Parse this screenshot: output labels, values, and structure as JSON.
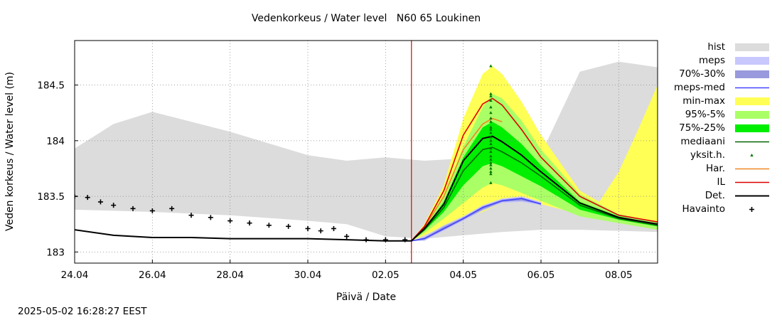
{
  "chart_data": {
    "type": "area",
    "title": "Vedenkorkeus / Water level   N60 65 Loukinen",
    "xlabel": "Päivä / Date",
    "ylabel": "Veden korkeus / Water level (m)",
    "xlim": [
      "2025-04-24",
      "2025-05-09"
    ],
    "ylim": [
      182.9,
      184.9
    ],
    "x_ticks": [
      "24.04",
      "26.04",
      "28.04",
      "30.04",
      "02.05",
      "04.05",
      "06.05",
      "08.05"
    ],
    "y_ticks": [
      "183",
      "183.5",
      "184",
      "184.5"
    ],
    "grid": true,
    "forecast_start": "2025-05-02 16:00",
    "legend_position": "right",
    "series": [
      {
        "name": "hist",
        "color": "#dcdcdc",
        "x": [
          "2025-04-24",
          "2025-04-25",
          "2025-04-26",
          "2025-04-28",
          "2025-04-30",
          "2025-05-01",
          "2025-05-02",
          "2025-05-03",
          "2025-05-04",
          "2025-05-05",
          "2025-05-06",
          "2025-05-07",
          "2025-05-08",
          "2025-05-09"
        ],
        "upper": [
          183.93,
          184.15,
          184.26,
          184.08,
          183.87,
          183.82,
          183.85,
          183.82,
          183.84,
          183.9,
          183.88,
          184.62,
          184.71,
          184.66
        ],
        "lower": [
          183.38,
          183.37,
          183.36,
          183.33,
          183.28,
          183.25,
          183.14,
          183.12,
          183.15,
          183.18,
          183.2,
          183.2,
          183.19,
          183.18
        ]
      },
      {
        "name": "min-max",
        "color": "#ffff55",
        "x": [
          "2025-05-02 16:00",
          "2025-05-03",
          "2025-05-03 12:00",
          "2025-05-04",
          "2025-05-04 12:00",
          "2025-05-04 18:00",
          "2025-05-05",
          "2025-05-05 12:00",
          "2025-05-06",
          "2025-05-07",
          "2025-05-07 12:00",
          "2025-05-08",
          "2025-05-08 12:00",
          "2025-05-09"
        ],
        "upper": [
          183.1,
          183.25,
          183.6,
          184.2,
          184.6,
          184.67,
          184.6,
          184.35,
          184.05,
          183.55,
          183.45,
          183.72,
          184.1,
          184.5
        ],
        "lower": [
          183.1,
          183.15,
          183.23,
          183.3,
          183.36,
          183.4,
          183.44,
          183.46,
          183.43,
          183.34,
          183.3,
          183.27,
          183.24,
          183.21
        ]
      },
      {
        "name": "95%-5%",
        "color": "#aaff66",
        "x": [
          "2025-05-02 16:00",
          "2025-05-03",
          "2025-05-03 12:00",
          "2025-05-04",
          "2025-05-04 12:00",
          "2025-05-04 18:00",
          "2025-05-05",
          "2025-05-05 12:00",
          "2025-05-06",
          "2025-05-07",
          "2025-05-08",
          "2025-05-09"
        ],
        "upper": [
          183.1,
          183.22,
          183.5,
          183.95,
          184.3,
          184.42,
          184.38,
          184.18,
          183.92,
          183.52,
          183.34,
          183.27
        ],
        "lower": [
          183.1,
          183.17,
          183.3,
          183.44,
          183.58,
          183.62,
          183.6,
          183.53,
          183.46,
          183.32,
          183.26,
          183.2
        ]
      },
      {
        "name": "75%-25%",
        "color": "#00ee00",
        "x": [
          "2025-05-02 16:00",
          "2025-05-03",
          "2025-05-03 12:00",
          "2025-05-04",
          "2025-05-04 12:00",
          "2025-05-04 18:00",
          "2025-05-05",
          "2025-05-05 12:00",
          "2025-05-06",
          "2025-05-07",
          "2025-05-08",
          "2025-05-09"
        ],
        "upper": [
          183.1,
          183.21,
          183.45,
          183.85,
          184.12,
          184.17,
          184.12,
          183.97,
          183.78,
          183.45,
          183.32,
          183.25
        ],
        "lower": [
          183.1,
          183.19,
          183.36,
          183.6,
          183.77,
          183.8,
          183.77,
          183.68,
          183.59,
          183.38,
          183.29,
          183.23
        ]
      },
      {
        "name": "mediaani",
        "color": "#006600",
        "x": [
          "2025-05-02 16:00",
          "2025-05-03",
          "2025-05-03 12:00",
          "2025-05-04",
          "2025-05-04 12:00",
          "2025-05-04 18:00",
          "2025-05-05",
          "2025-05-05 12:00",
          "2025-05-06",
          "2025-05-07",
          "2025-05-08",
          "2025-05-09"
        ],
        "values": [
          183.1,
          183.2,
          183.4,
          183.73,
          183.92,
          183.94,
          183.9,
          183.8,
          183.68,
          183.42,
          183.3,
          183.24
        ]
      },
      {
        "name": "meps",
        "color": "#c8c8ff",
        "x": [
          "2025-05-02 16:00",
          "2025-05-03",
          "2025-05-03 12:00",
          "2025-05-04",
          "2025-05-04 12:00",
          "2025-05-05",
          "2025-05-05 12:00",
          "2025-05-06"
        ],
        "upper": [
          183.1,
          183.14,
          183.24,
          183.32,
          183.42,
          183.48,
          183.5,
          183.45
        ],
        "lower": [
          183.1,
          183.1,
          183.19,
          183.28,
          183.37,
          183.44,
          183.45,
          183.42
        ]
      },
      {
        "name": "70%-30%",
        "color": "#9999dd",
        "x": [
          "2025-05-02 16:00",
          "2025-05-03",
          "2025-05-03 12:00",
          "2025-05-04",
          "2025-05-04 12:00",
          "2025-05-05",
          "2025-05-05 12:00",
          "2025-05-06"
        ],
        "upper": [
          183.1,
          183.13,
          183.23,
          183.31,
          183.41,
          183.47,
          183.49,
          183.44
        ],
        "lower": [
          183.1,
          183.11,
          183.2,
          183.29,
          183.38,
          183.45,
          183.46,
          183.43
        ]
      },
      {
        "name": "meps-med",
        "color": "#4444ff",
        "x": [
          "2025-05-02 16:00",
          "2025-05-03",
          "2025-05-03 12:00",
          "2025-05-04",
          "2025-05-04 12:00",
          "2025-05-05",
          "2025-05-05 12:00",
          "2025-05-06"
        ],
        "values": [
          183.1,
          183.12,
          183.21,
          183.3,
          183.4,
          183.46,
          183.48,
          183.43
        ]
      },
      {
        "name": "Har.",
        "color": "#ee8822",
        "x": [
          "2025-05-02 16:00",
          "2025-05-03",
          "2025-05-03 12:00",
          "2025-05-04",
          "2025-05-04 12:00",
          "2025-05-04 18:00",
          "2025-05-05"
        ],
        "values": [
          183.1,
          183.22,
          183.5,
          183.92,
          184.15,
          184.2,
          184.17
        ]
      },
      {
        "name": "IL",
        "color": "#dd0000",
        "x": [
          "2025-05-02 16:00",
          "2025-05-03",
          "2025-05-03 12:00",
          "2025-05-04",
          "2025-05-04 12:00",
          "2025-05-04 18:00",
          "2025-05-05",
          "2025-05-05 12:00",
          "2025-05-06",
          "2025-05-07",
          "2025-05-08",
          "2025-05-09"
        ],
        "values": [
          183.1,
          183.23,
          183.55,
          184.05,
          184.33,
          184.38,
          184.32,
          184.1,
          183.85,
          183.5,
          183.33,
          183.27
        ]
      },
      {
        "name": "Det.",
        "color": "#000000",
        "x": [
          "2025-04-24",
          "2025-04-25",
          "2025-04-26",
          "2025-04-27",
          "2025-04-28",
          "2025-04-29",
          "2025-04-30",
          "2025-05-01",
          "2025-05-02",
          "2025-05-02 16:00",
          "2025-05-03",
          "2025-05-03 12:00",
          "2025-05-04",
          "2025-05-04 12:00",
          "2025-05-04 18:00",
          "2025-05-05",
          "2025-05-05 12:00",
          "2025-05-06",
          "2025-05-07",
          "2025-05-08",
          "2025-05-09"
        ],
        "values": [
          183.2,
          183.15,
          183.13,
          183.13,
          183.12,
          183.12,
          183.12,
          183.11,
          183.1,
          183.1,
          183.21,
          183.43,
          183.82,
          184.02,
          184.04,
          183.99,
          183.87,
          183.72,
          183.44,
          183.31,
          183.25
        ]
      },
      {
        "name": "Havainto",
        "color": "#000000",
        "marker": "plus",
        "x": [
          "2025-04-24",
          "2025-04-24 08:00",
          "2025-04-24 16:00",
          "2025-04-25",
          "2025-04-25 12:00",
          "2025-04-26",
          "2025-04-26 12:00",
          "2025-04-27",
          "2025-04-27 12:00",
          "2025-04-28",
          "2025-04-28 12:00",
          "2025-04-29",
          "2025-04-29 12:00",
          "2025-04-30",
          "2025-04-30 08:00",
          "2025-04-30 16:00",
          "2025-05-01",
          "2025-05-01 12:00",
          "2025-05-02",
          "2025-05-02 12:00"
        ],
        "values": [
          183.5,
          183.49,
          183.45,
          183.42,
          183.39,
          183.37,
          183.39,
          183.33,
          183.31,
          183.28,
          183.26,
          183.24,
          183.23,
          183.21,
          183.19,
          183.21,
          183.14,
          183.11,
          183.11,
          183.11
        ]
      },
      {
        "name": "yksit.h.",
        "color": "#007700",
        "marker": "triangle",
        "x": [
          "2025-05-04 17:00",
          "2025-05-04 17:00",
          "2025-05-04 17:00",
          "2025-05-04 17:00",
          "2025-05-04 17:00",
          "2025-05-04 17:00",
          "2025-05-04 17:00",
          "2025-05-04 17:00",
          "2025-05-04 17:00",
          "2025-05-04 17:00",
          "2025-05-04 17:00",
          "2025-05-04 17:00",
          "2025-05-04 17:00",
          "2025-05-04 17:00",
          "2025-05-04 17:00",
          "2025-05-04 17:00",
          "2025-05-04 17:00",
          "2025-05-04 17:00",
          "2025-05-04 17:00",
          "2025-05-04 17:00",
          "2025-05-04 17:00",
          "2025-05-04 17:00",
          "2025-05-04 17:00",
          "2025-05-04 17:00"
        ],
        "values": [
          184.67,
          184.42,
          184.4,
          184.36,
          184.3,
          184.25,
          184.2,
          184.17,
          184.12,
          184.1,
          184.07,
          184.03,
          184.0,
          183.97,
          183.93,
          183.9,
          183.86,
          183.83,
          183.8,
          183.78,
          183.75,
          183.72,
          183.7,
          183.62
        ]
      }
    ]
  },
  "timestamp": "2025-05-02 16:28:27 EEST"
}
